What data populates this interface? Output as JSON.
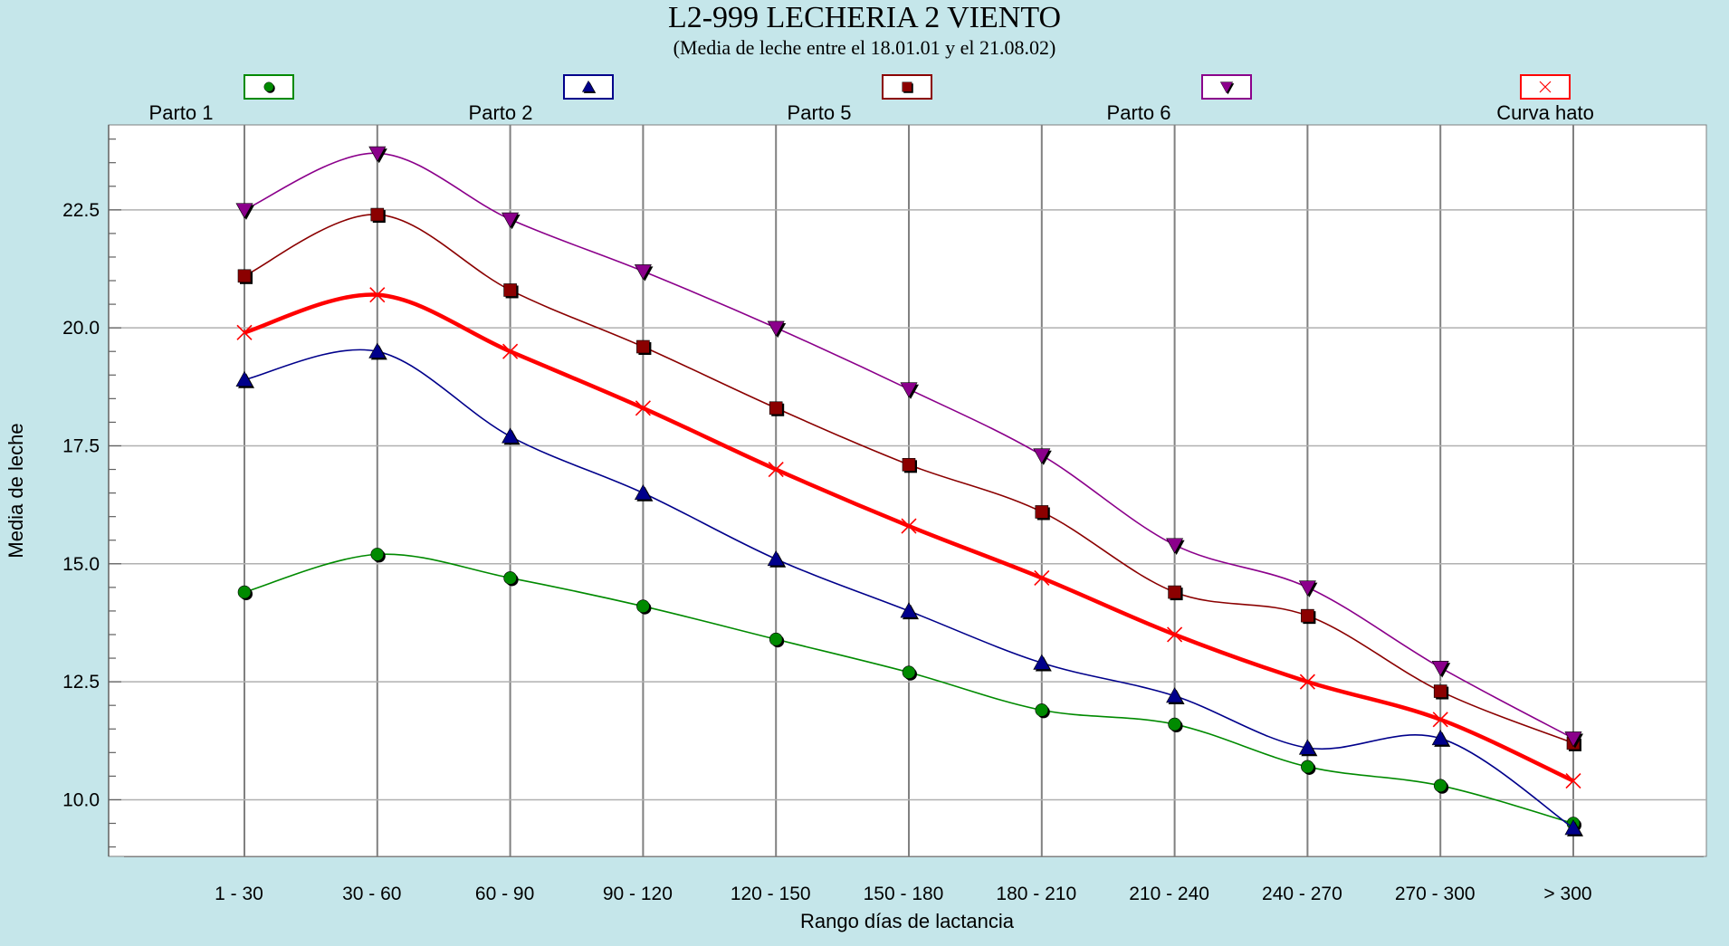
{
  "chart_data": {
    "type": "line",
    "title": "L2-999  LECHERIA 2 VIENTO",
    "subtitle": "(Media de leche entre el 18.01.01 y el 21.08.02)",
    "xlabel": "Rango días de lactancia",
    "ylabel": "Media de leche",
    "categories": [
      "1 - 30",
      "30 - 60",
      "60 - 90",
      "90 - 120",
      "120 - 150",
      "150 - 180",
      "180 - 210",
      "210 - 240",
      "240 - 270",
      "270 - 300",
      "> 300"
    ],
    "ylim": [
      8.8,
      24.3
    ],
    "yticks": [
      "10.0",
      "12.5",
      "15.0",
      "17.5",
      "20.0",
      "22.5"
    ],
    "ytick_values": [
      10.0,
      12.5,
      15.0,
      17.5,
      20.0,
      22.5
    ],
    "grid": true,
    "legend_position": "top",
    "series": [
      {
        "name": "Parto 1",
        "color": "#008a00",
        "marker": "circle",
        "values": [
          14.4,
          15.2,
          14.7,
          14.1,
          13.4,
          12.7,
          11.9,
          11.6,
          10.7,
          10.3,
          9.5
        ]
      },
      {
        "name": "Parto 2",
        "color": "#00008b",
        "marker": "triangle-up",
        "values": [
          18.9,
          19.5,
          17.7,
          16.5,
          15.1,
          14.0,
          12.9,
          12.2,
          11.1,
          11.3,
          9.4
        ]
      },
      {
        "name": "Parto 5",
        "color": "#8b0000",
        "marker": "square",
        "values": [
          21.1,
          22.4,
          20.8,
          19.6,
          18.3,
          17.1,
          16.1,
          14.4,
          13.9,
          12.3,
          11.2
        ]
      },
      {
        "name": "Parto 6",
        "color": "#8b008b",
        "marker": "triangle-down",
        "values": [
          22.5,
          23.7,
          22.3,
          21.2,
          20.0,
          18.7,
          17.3,
          15.4,
          14.5,
          12.8,
          11.3
        ]
      },
      {
        "name": "Curva hato",
        "color": "#ff0000",
        "marker": "x",
        "bold": true,
        "values": [
          19.9,
          20.7,
          19.5,
          18.3,
          17.0,
          15.8,
          14.7,
          13.5,
          12.5,
          11.7,
          10.4
        ]
      }
    ]
  }
}
